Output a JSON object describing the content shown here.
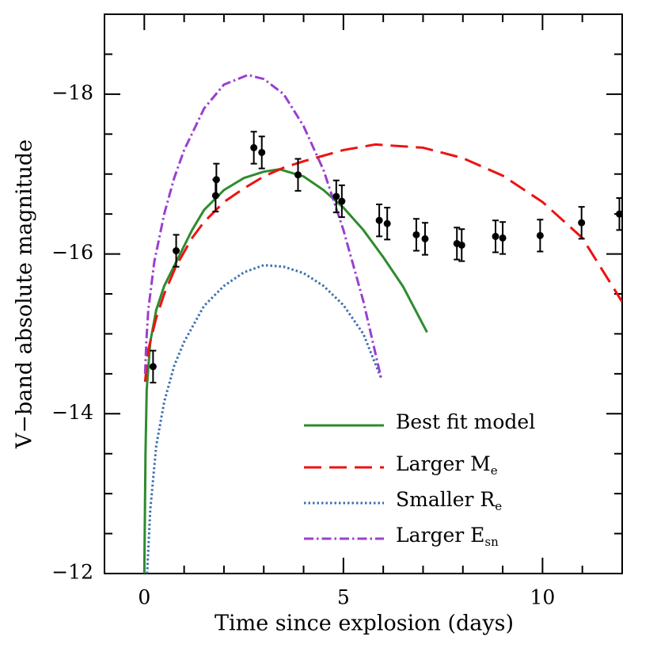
{
  "chart_data": {
    "type": "line",
    "xlabel": "Time since explosion (days)",
    "ylabel": "V−band absolute magnitude",
    "xlim": [
      -1,
      12
    ],
    "ylim": [
      -12,
      -19
    ],
    "xticks": [
      0,
      5,
      10
    ],
    "yticks": [
      {
        "value": -12,
        "label": "−12"
      },
      {
        "value": -14,
        "label": "−14"
      },
      {
        "value": -16,
        "label": "−16"
      },
      {
        "value": -18,
        "label": "−18"
      }
    ],
    "xminorticks": [
      1,
      2,
      3,
      4,
      6,
      7,
      8,
      9,
      11
    ],
    "yminorticks": [
      -12.5,
      -13,
      -13.5,
      -14.5,
      -15,
      -15.5,
      -16.5,
      -17,
      -17.5,
      -18.5
    ],
    "series": [
      {
        "name": "Best fit model",
        "color": "#2e8b2e",
        "line_style": "solid",
        "x": [
          0.0,
          0.03,
          0.06,
          0.15,
          0.3,
          0.5,
          0.8,
          1.2,
          1.5,
          2,
          2.5,
          3,
          3.4,
          4,
          4.5,
          5,
          5.5,
          6,
          6.5,
          7.1
        ],
        "values": [
          -12,
          -13.5,
          -14.3,
          -14.9,
          -15.3,
          -15.6,
          -15.9,
          -16.3,
          -16.55,
          -16.8,
          -16.95,
          -17.03,
          -17.06,
          -16.97,
          -16.8,
          -16.58,
          -16.3,
          -15.96,
          -15.59,
          -15.02
        ]
      },
      {
        "name": "Larger M",
        "name_subscript": "e",
        "color": "#ee1111",
        "line_style": "dashed",
        "x": [
          0.02,
          0.1,
          0.3,
          0.5,
          0.8,
          1.2,
          1.5,
          2,
          2.5,
          3,
          3.5,
          4,
          5,
          5.8,
          7,
          8,
          9,
          10,
          11,
          12
        ],
        "values": [
          -14.4,
          -14.8,
          -15.2,
          -15.5,
          -15.85,
          -16.2,
          -16.4,
          -16.65,
          -16.82,
          -16.97,
          -17.08,
          -17.16,
          -17.3,
          -17.37,
          -17.33,
          -17.2,
          -16.98,
          -16.65,
          -16.2,
          -15.4
        ]
      },
      {
        "name": "Smaller R",
        "name_subscript": "e",
        "color": "#3a6fb0",
        "line_style": "dotted",
        "x": [
          0.07,
          0.15,
          0.3,
          0.5,
          0.75,
          1,
          1.5,
          2,
          2.5,
          3,
          3.5,
          4,
          4.5,
          5,
          5.5,
          5.95
        ],
        "values": [
          -12,
          -12.8,
          -13.6,
          -14.15,
          -14.6,
          -14.9,
          -15.35,
          -15.6,
          -15.77,
          -15.86,
          -15.84,
          -15.76,
          -15.6,
          -15.36,
          -15.0,
          -14.44
        ]
      },
      {
        "name": "Larger E",
        "name_subscript": "sn",
        "color": "#9a3fd0",
        "line_style": "dashdot",
        "x": [
          0.02,
          0.05,
          0.1,
          0.25,
          0.5,
          0.75,
          1,
          1.5,
          2,
          2.6,
          3,
          3.5,
          4,
          4.5,
          5,
          5.5,
          5.95
        ],
        "values": [
          -14.5,
          -14.9,
          -15.3,
          -15.9,
          -16.5,
          -16.95,
          -17.3,
          -17.82,
          -18.12,
          -18.24,
          -18.19,
          -18.0,
          -17.6,
          -17.05,
          -16.3,
          -15.41,
          -14.44
        ]
      },
      {
        "type": "errorbar",
        "color": "#000000",
        "x": [
          0.22,
          0.8,
          1.79,
          1.81,
          2.75,
          2.95,
          3.86,
          4.82,
          4.96,
          5.9,
          6.1,
          6.83,
          7.05,
          7.85,
          7.97,
          8.82,
          9.0,
          9.94,
          10.98,
          11.93
        ],
        "values": [
          -14.59,
          -16.04,
          -16.73,
          -16.93,
          -17.33,
          -17.27,
          -16.99,
          -16.72,
          -16.66,
          -16.42,
          -16.38,
          -16.24,
          -16.19,
          -16.13,
          -16.11,
          -16.22,
          -16.2,
          -16.23,
          -16.39,
          -16.5
        ],
        "errors": [
          0.2,
          0.2,
          0.2,
          0.2,
          0.2,
          0.2,
          0.2,
          0.2,
          0.2,
          0.2,
          0.2,
          0.2,
          0.2,
          0.2,
          0.2,
          0.2,
          0.2,
          0.2,
          0.2,
          0.2
        ]
      }
    ]
  }
}
